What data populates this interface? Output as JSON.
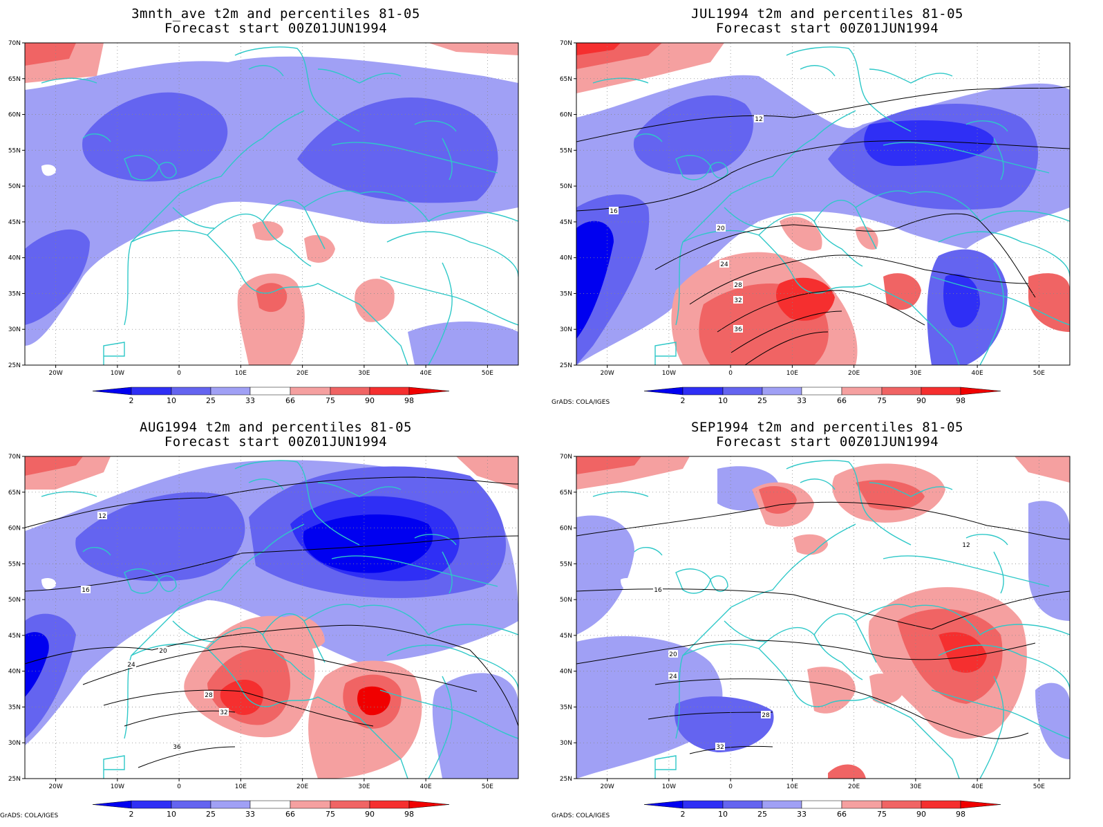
{
  "panels": [
    {
      "id": "p1",
      "title": "3mnth_ave t2m and percentiles 81-05",
      "subtitle": "Forecast start 00Z01JUN1994",
      "credit": ""
    },
    {
      "id": "p2",
      "title": "JUL1994 t2m and percentiles 81-05",
      "subtitle": "Forecast start 00Z01JUN1994",
      "credit": "GrADS: COLA/IGES"
    },
    {
      "id": "p3",
      "title": "AUG1994 t2m and percentiles 81-05",
      "subtitle": "Forecast start 00Z01JUN1994",
      "credit": "GrADS: COLA/IGES"
    },
    {
      "id": "p4",
      "title": "SEP1994 t2m and percentiles 81-05",
      "subtitle": "Forecast start 00Z01JUN1994",
      "credit": "GrADS: COLA/IGES"
    }
  ],
  "axes": {
    "lat_ticks": [
      "25N",
      "30N",
      "35N",
      "40N",
      "45N",
      "50N",
      "55N",
      "60N",
      "65N",
      "70N"
    ],
    "lon_ticks": [
      "20W",
      "10W",
      "0",
      "10E",
      "20E",
      "30E",
      "40E",
      "50E"
    ],
    "lat_range": [
      25,
      70
    ],
    "lon_range": [
      -25,
      55
    ]
  },
  "colorbar": {
    "labels": [
      "2",
      "10",
      "25",
      "33",
      "66",
      "75",
      "90",
      "98"
    ],
    "colors": [
      "#0000f0",
      "#2f2ff5",
      "#6464f0",
      "#a0a0f5",
      "#ffffff",
      "#f5a0a0",
      "#f06464",
      "#f52f2f",
      "#f00000"
    ]
  },
  "colors": {
    "coast": "#2ec8c8",
    "contour": "#000000",
    "grid": "#888888"
  }
}
